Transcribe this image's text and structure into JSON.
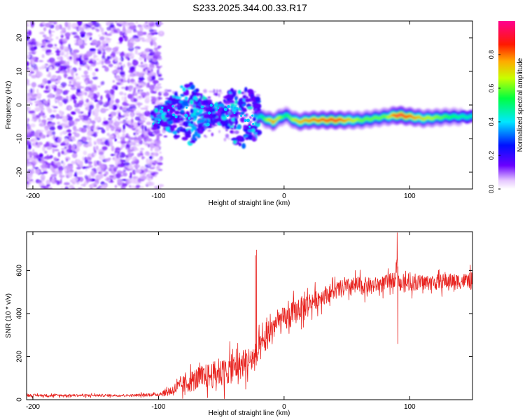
{
  "figure_title": "S233.2025.344.00.33.R17",
  "colors": {
    "snr_line": "#e8231f",
    "axis": "#000000",
    "background": "#ffffff"
  },
  "colorbar": {
    "label": "Normalized spectral amplitude",
    "ticks": [
      "0.0",
      "0.2",
      "0.4",
      "0.6",
      "0.8"
    ],
    "range": [
      0.0,
      1.0
    ],
    "colormap": "rainbow (purple → blue → cyan → green → yellow → red → magenta)"
  },
  "chart_data": [
    {
      "type": "heatmap",
      "title": "",
      "xlabel": "Height of straight line (km)",
      "ylabel": "Frequency (Hz)",
      "xlim": [
        -205,
        150
      ],
      "ylim": [
        -25,
        25
      ],
      "xticks": [
        -200,
        -100,
        0,
        100
      ],
      "xtick_labels": [
        "-200",
        "-100",
        "0",
        "100"
      ],
      "yticks": [
        20,
        10,
        0,
        -10,
        -20
      ],
      "ytick_labels": [
        "20",
        "10",
        "0",
        "-10",
        "-20"
      ],
      "description_points": {
        "noise_region_x": [
          -205,
          -100
        ],
        "signal_track": [
          {
            "x": -105,
            "y": -4.0,
            "amp": 0.25
          },
          {
            "x": -90,
            "y": -3.0,
            "amp": 0.25
          },
          {
            "x": -75,
            "y": -2.5,
            "amp": 0.25
          },
          {
            "x": -60,
            "y": -3.0,
            "amp": 0.25
          },
          {
            "x": -45,
            "y": -2.0,
            "amp": 0.25
          },
          {
            "x": -35,
            "y": -4.0,
            "amp": 0.3
          },
          {
            "x": -20,
            "y": -3.5,
            "amp": 0.45
          },
          {
            "x": -10,
            "y": -5.0,
            "amp": 0.8
          },
          {
            "x": 0,
            "y": -3.0,
            "amp": 0.5
          },
          {
            "x": 10,
            "y": -5.0,
            "amp": 0.75
          },
          {
            "x": 20,
            "y": -4.5,
            "amp": 0.8
          },
          {
            "x": 40,
            "y": -4.5,
            "amp": 0.9
          },
          {
            "x": 60,
            "y": -4.5,
            "amp": 0.6
          },
          {
            "x": 80,
            "y": -3.5,
            "amp": 0.6
          },
          {
            "x": 90,
            "y": -3.0,
            "amp": 0.95
          },
          {
            "x": 110,
            "y": -4.0,
            "amp": 0.7
          },
          {
            "x": 130,
            "y": -3.5,
            "amp": 0.55
          },
          {
            "x": 150,
            "y": -3.5,
            "amp": 0.45
          }
        ]
      }
    },
    {
      "type": "line",
      "title": "",
      "xlabel": "Height of straight line (km)",
      "ylabel": "SNR (10 * v/v)",
      "xlim": [
        -205,
        150
      ],
      "ylim": [
        0,
        780
      ],
      "xticks": [
        -200,
        -100,
        0,
        100
      ],
      "xtick_labels": [
        "-200",
        "-100",
        "0",
        "100"
      ],
      "yticks": [
        0,
        200,
        400,
        600
      ],
      "ytick_labels": [
        "0",
        "200",
        "400",
        "600"
      ],
      "series": [
        {
          "name": "SNR",
          "x": [
            -205,
            -180,
            -150,
            -120,
            -100,
            -90,
            -80,
            -70,
            -60,
            -50,
            -40,
            -30,
            -22,
            -20,
            -15,
            -10,
            -5,
            0,
            5,
            10,
            15,
            20,
            30,
            40,
            50,
            60,
            70,
            80,
            88,
            90,
            92,
            100,
            110,
            120,
            130,
            140,
            150
          ],
          "values": [
            20,
            20,
            20,
            20,
            25,
            40,
            70,
            95,
            110,
            125,
            145,
            175,
            200,
            230,
            270,
            330,
            360,
            370,
            390,
            410,
            430,
            450,
            480,
            505,
            520,
            530,
            530,
            540,
            560,
            640,
            530,
            540,
            545,
            545,
            550,
            550,
            555
          ],
          "noise_amplitude_approx": [
            10,
            10,
            10,
            10,
            15,
            40,
            70,
            90,
            100,
            110,
            110,
            110,
            110,
            100,
            100,
            100,
            100,
            100,
            100,
            90,
            90,
            80,
            70,
            70,
            70,
            70,
            60,
            60,
            60,
            60,
            60,
            60,
            60,
            60,
            60,
            60,
            60
          ],
          "spikes": [
            {
              "x": -22,
              "y": 695
            },
            {
              "x": -23,
              "y": 670
            },
            {
              "x": 90,
              "y": 775
            },
            {
              "x": 90.5,
              "y": 260
            }
          ]
        }
      ]
    }
  ]
}
